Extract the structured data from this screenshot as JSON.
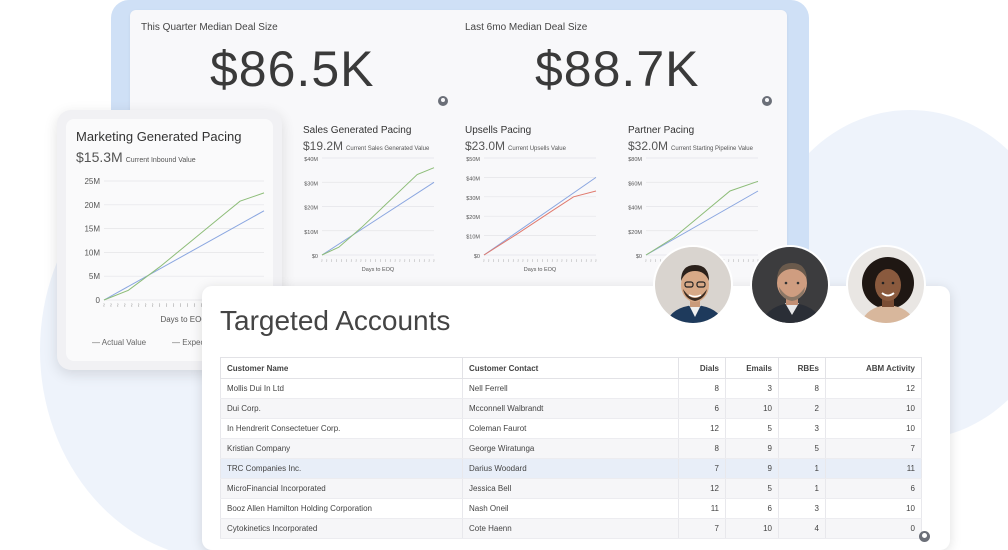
{
  "dashboard": {
    "kpis": [
      {
        "label": "This Quarter Median Deal Size",
        "value": "$86.5K"
      },
      {
        "label": "Last 6mo Median Deal Size",
        "value": "$88.7K"
      }
    ],
    "charts": [
      {
        "name": "marketing",
        "title": "Marketing Generated Pacing",
        "value": "$15.3M",
        "subtitle": "Current Inbound Value",
        "xlabel": "Days to EOQ",
        "yticks": [
          "25M",
          "20M",
          "15M",
          "10M",
          "5M",
          "0"
        ],
        "legend": [
          "Actual Value",
          "Expect"
        ],
        "colors": {
          "actual": "#8dbd78",
          "expected": "#8aa6e0"
        }
      },
      {
        "name": "sales",
        "title": "Sales Generated Pacing",
        "value": "$19.2M",
        "subtitle": "Current Sales Generated Value",
        "xlabel": "Days to EOQ",
        "yticks": [
          "$40M",
          "$30M",
          "$20M",
          "$10M",
          "$0"
        ],
        "colors": {
          "actual": "#8dbd78",
          "expected": "#8aa6e0"
        }
      },
      {
        "name": "upsells",
        "title": "Upsells Pacing",
        "value": "$23.0M",
        "subtitle": "Current Upsells Value",
        "xlabel": "Days to EOQ",
        "yticks": [
          "$50M",
          "$40M",
          "$30M",
          "$20M",
          "$10M",
          "$0"
        ],
        "colors": {
          "actual": "#e07a6e",
          "expected": "#8aa6e0"
        }
      },
      {
        "name": "partner",
        "title": "Partner Pacing",
        "value": "$32.0M",
        "subtitle": "Current Starting Pipeline Value",
        "yticks": [
          "$80M",
          "$60M",
          "$40M",
          "$20M",
          "$0"
        ],
        "colors": {
          "actual": "#8dbd78",
          "expected": "#8aa6e0"
        }
      }
    ]
  },
  "targeted_accounts": {
    "title": "Targeted Accounts",
    "columns": [
      "Customer Name",
      "Customer Contact",
      "Dials",
      "Emails",
      "RBEs",
      "ABM Activity"
    ],
    "rows": [
      [
        "Mollis Dui In Ltd",
        "Nell Ferrell",
        "8",
        "3",
        "8",
        "12"
      ],
      [
        "Dui Corp.",
        "Mcconnell Walbrandt",
        "6",
        "10",
        "2",
        "10"
      ],
      [
        "In Hendrerit Consectetuer Corp.",
        "Coleman Faurot",
        "12",
        "5",
        "3",
        "10"
      ],
      [
        "Kristian Company",
        "George Wiratunga",
        "8",
        "9",
        "5",
        "7"
      ],
      [
        "TRC Companies Inc.",
        "Darius Woodard",
        "7",
        "9",
        "1",
        "11"
      ],
      [
        "MicroFinancial Incorporated",
        "Jessica Bell",
        "12",
        "5",
        "1",
        "6"
      ],
      [
        "Booz Allen Hamilton Holding Corporation",
        "Nash Oneil",
        "11",
        "6",
        "3",
        "10"
      ],
      [
        "Cytokinetics Incorporated",
        "Cote Haenn",
        "7",
        "10",
        "4",
        "0"
      ]
    ],
    "selected_row": 4
  },
  "avatars": [
    "person-1-icon",
    "person-2-icon",
    "person-3-icon"
  ]
}
